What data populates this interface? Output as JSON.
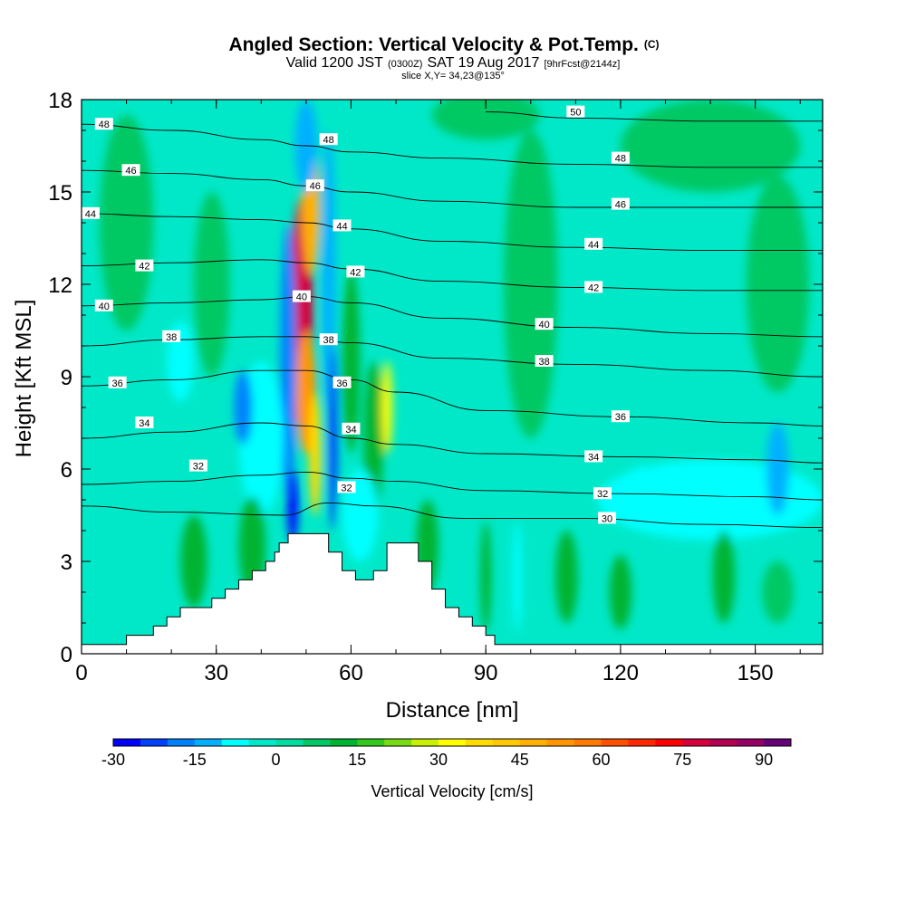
{
  "title": {
    "main": "Angled Section: Vertical Velocity & Pot.Temp.",
    "main_suffix": "(C)",
    "valid_a": "Valid 1200 JST",
    "valid_b": "(0300Z)",
    "valid_c": "SAT 19 Aug 2017",
    "valid_d": "[9hrFcst@2144z]",
    "slice": "slice X,Y= 34,23@135°"
  },
  "chart_data": {
    "type": "heatmap",
    "xlabel": "Distance [nm]",
    "ylabel": "Height [Kft MSL]",
    "xlim": [
      0,
      165
    ],
    "ylim": [
      0,
      18
    ],
    "x_ticks": [
      "0",
      "30",
      "60",
      "90",
      "120",
      "150"
    ],
    "y_ticks": [
      "0",
      "3",
      "6",
      "9",
      "12",
      "15",
      "18"
    ],
    "colorbar": {
      "label": "Vertical Velocity [cm/s]",
      "tick_labels": [
        "-30",
        "-15",
        "0",
        "15",
        "30",
        "45",
        "60",
        "75",
        "90"
      ],
      "levels": [
        -30,
        -25,
        -20,
        -15,
        -10,
        -5,
        0,
        5,
        10,
        15,
        20,
        25,
        30,
        35,
        40,
        45,
        50,
        55,
        60,
        65,
        70,
        75,
        80,
        85,
        90,
        95
      ],
      "colors": [
        "#0000ff",
        "#0040ff",
        "#0080ff",
        "#00b0ff",
        "#00ffff",
        "#00e8c8",
        "#00dca0",
        "#00c864",
        "#00b432",
        "#32c81e",
        "#78dc14",
        "#c8f000",
        "#ffff00",
        "#ffdc00",
        "#ffc800",
        "#ffb000",
        "#ff9600",
        "#ff7800",
        "#ff5000",
        "#ff2800",
        "#ff0000",
        "#d7003c",
        "#b40050",
        "#960064",
        "#640078"
      ]
    },
    "terrain_profile": [
      [
        0,
        0.3
      ],
      [
        10,
        0.3
      ],
      [
        10,
        0.6
      ],
      [
        16,
        0.6
      ],
      [
        16,
        0.9
      ],
      [
        19,
        0.9
      ],
      [
        19,
        1.2
      ],
      [
        22,
        1.2
      ],
      [
        22,
        1.5
      ],
      [
        29,
        1.5
      ],
      [
        29,
        1.8
      ],
      [
        32,
        1.8
      ],
      [
        32,
        2.1
      ],
      [
        35,
        2.1
      ],
      [
        35,
        2.4
      ],
      [
        38,
        2.4
      ],
      [
        38,
        2.7
      ],
      [
        41,
        2.7
      ],
      [
        41,
        3.0
      ],
      [
        43,
        3.0
      ],
      [
        43,
        3.3
      ],
      [
        44,
        3.3
      ],
      [
        44,
        3.6
      ],
      [
        46,
        3.6
      ],
      [
        46,
        3.9
      ],
      [
        55,
        3.9
      ],
      [
        55,
        3.3
      ],
      [
        58,
        3.3
      ],
      [
        58,
        2.7
      ],
      [
        61,
        2.7
      ],
      [
        61,
        2.4
      ],
      [
        65,
        2.4
      ],
      [
        65,
        2.7
      ],
      [
        68,
        2.7
      ],
      [
        68,
        3.6
      ],
      [
        75,
        3.6
      ],
      [
        75,
        3.0
      ],
      [
        78,
        3.0
      ],
      [
        78,
        2.1
      ],
      [
        81,
        2.1
      ],
      [
        81,
        1.5
      ],
      [
        84,
        1.5
      ],
      [
        84,
        1.2
      ],
      [
        87,
        1.2
      ],
      [
        87,
        0.9
      ],
      [
        90,
        0.9
      ],
      [
        90,
        0.6
      ],
      [
        92,
        0.6
      ],
      [
        92,
        0.3
      ],
      [
        165,
        0.3
      ]
    ],
    "isentropes": [
      {
        "label": "30",
        "level": 30,
        "pts": [
          [
            0,
            4.8
          ],
          [
            20,
            4.6
          ],
          [
            45,
            4.5
          ],
          [
            55,
            4.9
          ],
          [
            65,
            4.8
          ],
          [
            85,
            4.4
          ],
          [
            110,
            4.4
          ],
          [
            140,
            4.2
          ],
          [
            165,
            4.1
          ]
        ]
      },
      {
        "label": "32",
        "level": 32,
        "pts": [
          [
            0,
            5.5
          ],
          [
            20,
            5.6
          ],
          [
            40,
            5.8
          ],
          [
            50,
            5.9
          ],
          [
            60,
            5.7
          ],
          [
            70,
            5.6
          ],
          [
            90,
            5.3
          ],
          [
            120,
            5.2
          ],
          [
            150,
            5.1
          ],
          [
            165,
            5.0
          ]
        ]
      },
      {
        "label": "34",
        "level": 34,
        "pts": [
          [
            0,
            7.0
          ],
          [
            20,
            7.2
          ],
          [
            40,
            7.5
          ],
          [
            50,
            7.4
          ],
          [
            60,
            7.0
          ],
          [
            70,
            6.8
          ],
          [
            90,
            6.5
          ],
          [
            120,
            6.4
          ],
          [
            150,
            6.3
          ],
          [
            165,
            6.2
          ]
        ]
      },
      {
        "label": "36",
        "level": 36,
        "pts": [
          [
            0,
            8.7
          ],
          [
            20,
            8.9
          ],
          [
            40,
            9.2
          ],
          [
            50,
            9.2
          ],
          [
            60,
            8.9
          ],
          [
            70,
            8.5
          ],
          [
            90,
            7.9
          ],
          [
            120,
            7.7
          ],
          [
            150,
            7.5
          ],
          [
            165,
            7.4
          ]
        ]
      },
      {
        "label": "38",
        "level": 38,
        "pts": [
          [
            0,
            10.0
          ],
          [
            20,
            10.2
          ],
          [
            40,
            10.3
          ],
          [
            50,
            10.3
          ],
          [
            60,
            10.1
          ],
          [
            80,
            9.6
          ],
          [
            110,
            9.4
          ],
          [
            140,
            9.2
          ],
          [
            165,
            9.0
          ]
        ]
      },
      {
        "label": "40",
        "level": 40,
        "pts": [
          [
            0,
            11.3
          ],
          [
            20,
            11.4
          ],
          [
            40,
            11.5
          ],
          [
            50,
            11.6
          ],
          [
            60,
            11.4
          ],
          [
            80,
            10.9
          ],
          [
            110,
            10.6
          ],
          [
            140,
            10.4
          ],
          [
            165,
            10.3
          ]
        ]
      },
      {
        "label": "42",
        "level": 42,
        "pts": [
          [
            0,
            12.6
          ],
          [
            20,
            12.7
          ],
          [
            40,
            12.8
          ],
          [
            50,
            12.7
          ],
          [
            60,
            12.5
          ],
          [
            80,
            12.1
          ],
          [
            110,
            11.9
          ],
          [
            140,
            11.8
          ],
          [
            165,
            11.8
          ]
        ]
      },
      {
        "label": "44",
        "level": 44,
        "pts": [
          [
            0,
            14.3
          ],
          [
            20,
            14.2
          ],
          [
            40,
            14.1
          ],
          [
            50,
            14.0
          ],
          [
            60,
            13.8
          ],
          [
            80,
            13.4
          ],
          [
            110,
            13.2
          ],
          [
            140,
            13.1
          ],
          [
            165,
            13.1
          ]
        ]
      },
      {
        "label": "46",
        "level": 46,
        "pts": [
          [
            0,
            15.7
          ],
          [
            20,
            15.6
          ],
          [
            40,
            15.4
          ],
          [
            50,
            15.2
          ],
          [
            60,
            15.0
          ],
          [
            80,
            14.7
          ],
          [
            110,
            14.5
          ],
          [
            140,
            14.5
          ],
          [
            165,
            14.5
          ]
        ]
      },
      {
        "label": "48",
        "level": 48,
        "pts": [
          [
            0,
            17.2
          ],
          [
            20,
            17.0
          ],
          [
            40,
            16.7
          ],
          [
            50,
            16.5
          ],
          [
            60,
            16.3
          ],
          [
            80,
            16.1
          ],
          [
            110,
            15.9
          ],
          [
            140,
            15.8
          ],
          [
            165,
            15.8
          ]
        ]
      },
      {
        "label": "50",
        "level": 50,
        "pts": [
          [
            90,
            17.6
          ],
          [
            110,
            17.4
          ],
          [
            140,
            17.3
          ],
          [
            165,
            17.3
          ]
        ]
      }
    ],
    "contour_labels": [
      {
        "text": "48",
        "x": 5,
        "y": 17.2
      },
      {
        "text": "46",
        "x": 11,
        "y": 15.7
      },
      {
        "text": "44",
        "x": 2,
        "y": 14.3
      },
      {
        "text": "42",
        "x": 14,
        "y": 12.6
      },
      {
        "text": "40",
        "x": 5,
        "y": 11.3
      },
      {
        "text": "38",
        "x": 20,
        "y": 10.3
      },
      {
        "text": "36",
        "x": 8,
        "y": 8.8
      },
      {
        "text": "34",
        "x": 14,
        "y": 7.5
      },
      {
        "text": "32",
        "x": 26,
        "y": 6.1
      },
      {
        "text": "48",
        "x": 55,
        "y": 16.7
      },
      {
        "text": "46",
        "x": 52,
        "y": 15.2
      },
      {
        "text": "44",
        "x": 58,
        "y": 13.9
      },
      {
        "text": "40",
        "x": 49,
        "y": 11.6
      },
      {
        "text": "42",
        "x": 61,
        "y": 12.4
      },
      {
        "text": "38",
        "x": 55,
        "y": 10.2
      },
      {
        "text": "36",
        "x": 58,
        "y": 8.8
      },
      {
        "text": "34",
        "x": 60,
        "y": 7.3
      },
      {
        "text": "32",
        "x": 59,
        "y": 5.4
      },
      {
        "text": "50",
        "x": 110,
        "y": 17.6
      },
      {
        "text": "48",
        "x": 120,
        "y": 16.1
      },
      {
        "text": "46",
        "x": 120,
        "y": 14.6
      },
      {
        "text": "44",
        "x": 114,
        "y": 13.3
      },
      {
        "text": "42",
        "x": 114,
        "y": 11.9
      },
      {
        "text": "40",
        "x": 103,
        "y": 10.7
      },
      {
        "text": "38",
        "x": 103,
        "y": 9.5
      },
      {
        "text": "36",
        "x": 120,
        "y": 7.7
      },
      {
        "text": "34",
        "x": 114,
        "y": 6.4
      },
      {
        "text": "32",
        "x": 116,
        "y": 5.2
      },
      {
        "text": "30",
        "x": 117,
        "y": 4.4
      }
    ],
    "velocity_features": [
      {
        "x": 49,
        "y": 11,
        "rx": 2.6,
        "ry": 3.8,
        "value": 78
      },
      {
        "x": 50,
        "y": 8.5,
        "rx": 2.2,
        "ry": 2.0,
        "value": 50
      },
      {
        "x": 51,
        "y": 14.5,
        "rx": 2.0,
        "ry": 2.2,
        "value": 45
      },
      {
        "x": 52,
        "y": 6.5,
        "rx": 1.4,
        "ry": 2.0,
        "value": 35
      },
      {
        "x": 46,
        "y": 9.5,
        "rx": 1.8,
        "ry": 4.5,
        "value": -20
      },
      {
        "x": 55,
        "y": 12.5,
        "rx": 1.5,
        "ry": 4.5,
        "value": -12
      },
      {
        "x": 56,
        "y": 7.0,
        "rx": 1.0,
        "ry": 3.0,
        "value": -22
      },
      {
        "x": 50,
        "y": 16.5,
        "rx": 2.5,
        "ry": 1.5,
        "value": -12
      },
      {
        "x": 47,
        "y": 4.8,
        "rx": 1.2,
        "ry": 1.2,
        "value": -30
      },
      {
        "x": 65,
        "y": 7.0,
        "rx": 2.2,
        "ry": 2.5,
        "value": 12
      },
      {
        "x": 68,
        "y": 8.0,
        "rx": 1.2,
        "ry": 1.5,
        "value": 30
      },
      {
        "x": 60,
        "y": 9.5,
        "rx": 2.0,
        "ry": 3.0,
        "value": 12
      },
      {
        "x": 40,
        "y": 7.0,
        "rx": 5.0,
        "ry": 2.5,
        "value": -10
      },
      {
        "x": 36,
        "y": 8.0,
        "rx": 2.0,
        "ry": 1.2,
        "value": -18
      },
      {
        "x": 22,
        "y": 9.5,
        "rx": 3.0,
        "ry": 1.3,
        "value": -10
      },
      {
        "x": 62,
        "y": 4.5,
        "rx": 4.0,
        "ry": 1.5,
        "value": -10
      },
      {
        "x": 140,
        "y": 5.0,
        "rx": 25.0,
        "ry": 1.3,
        "value": -8
      },
      {
        "x": 155,
        "y": 6.0,
        "rx": 2.5,
        "ry": 1.5,
        "value": -12
      },
      {
        "x": 10,
        "y": 14.0,
        "rx": 6.0,
        "ry": 3.5,
        "value": 5
      },
      {
        "x": 29,
        "y": 12.0,
        "rx": 4.0,
        "ry": 3.0,
        "value": 5
      },
      {
        "x": 100,
        "y": 12.0,
        "rx": 6.0,
        "ry": 5.0,
        "value": 5
      },
      {
        "x": 155,
        "y": 12.0,
        "rx": 7.0,
        "ry": 3.5,
        "value": 5
      },
      {
        "x": 140,
        "y": 16.5,
        "rx": 20.0,
        "ry": 1.5,
        "value": 5
      },
      {
        "x": 90,
        "y": 17.5,
        "rx": 12.0,
        "ry": 0.8,
        "value": 5
      },
      {
        "x": 25,
        "y": 3.0,
        "rx": 3.0,
        "ry": 1.5,
        "value": 12
      },
      {
        "x": 38,
        "y": 3.5,
        "rx": 3.0,
        "ry": 1.6,
        "value": 12
      },
      {
        "x": 77,
        "y": 3.5,
        "rx": 2.5,
        "ry": 1.5,
        "value": 12
      },
      {
        "x": 90,
        "y": 2.5,
        "rx": 1.2,
        "ry": 1.8,
        "value": 12
      },
      {
        "x": 108,
        "y": 2.5,
        "rx": 2.5,
        "ry": 1.5,
        "value": 10
      },
      {
        "x": 120,
        "y": 2.0,
        "rx": 2.5,
        "ry": 1.2,
        "value": 10
      },
      {
        "x": 143,
        "y": 2.5,
        "rx": 2.5,
        "ry": 1.5,
        "value": 10
      },
      {
        "x": 155,
        "y": 2.0,
        "rx": 3.5,
        "ry": 1.0,
        "value": 5
      },
      {
        "x": 97,
        "y": 2.5,
        "rx": 1.0,
        "ry": 1.8,
        "value": -8
      },
      {
        "x": 125,
        "y": 5.5,
        "rx": 4.0,
        "ry": 0.6,
        "value": -8
      }
    ]
  }
}
